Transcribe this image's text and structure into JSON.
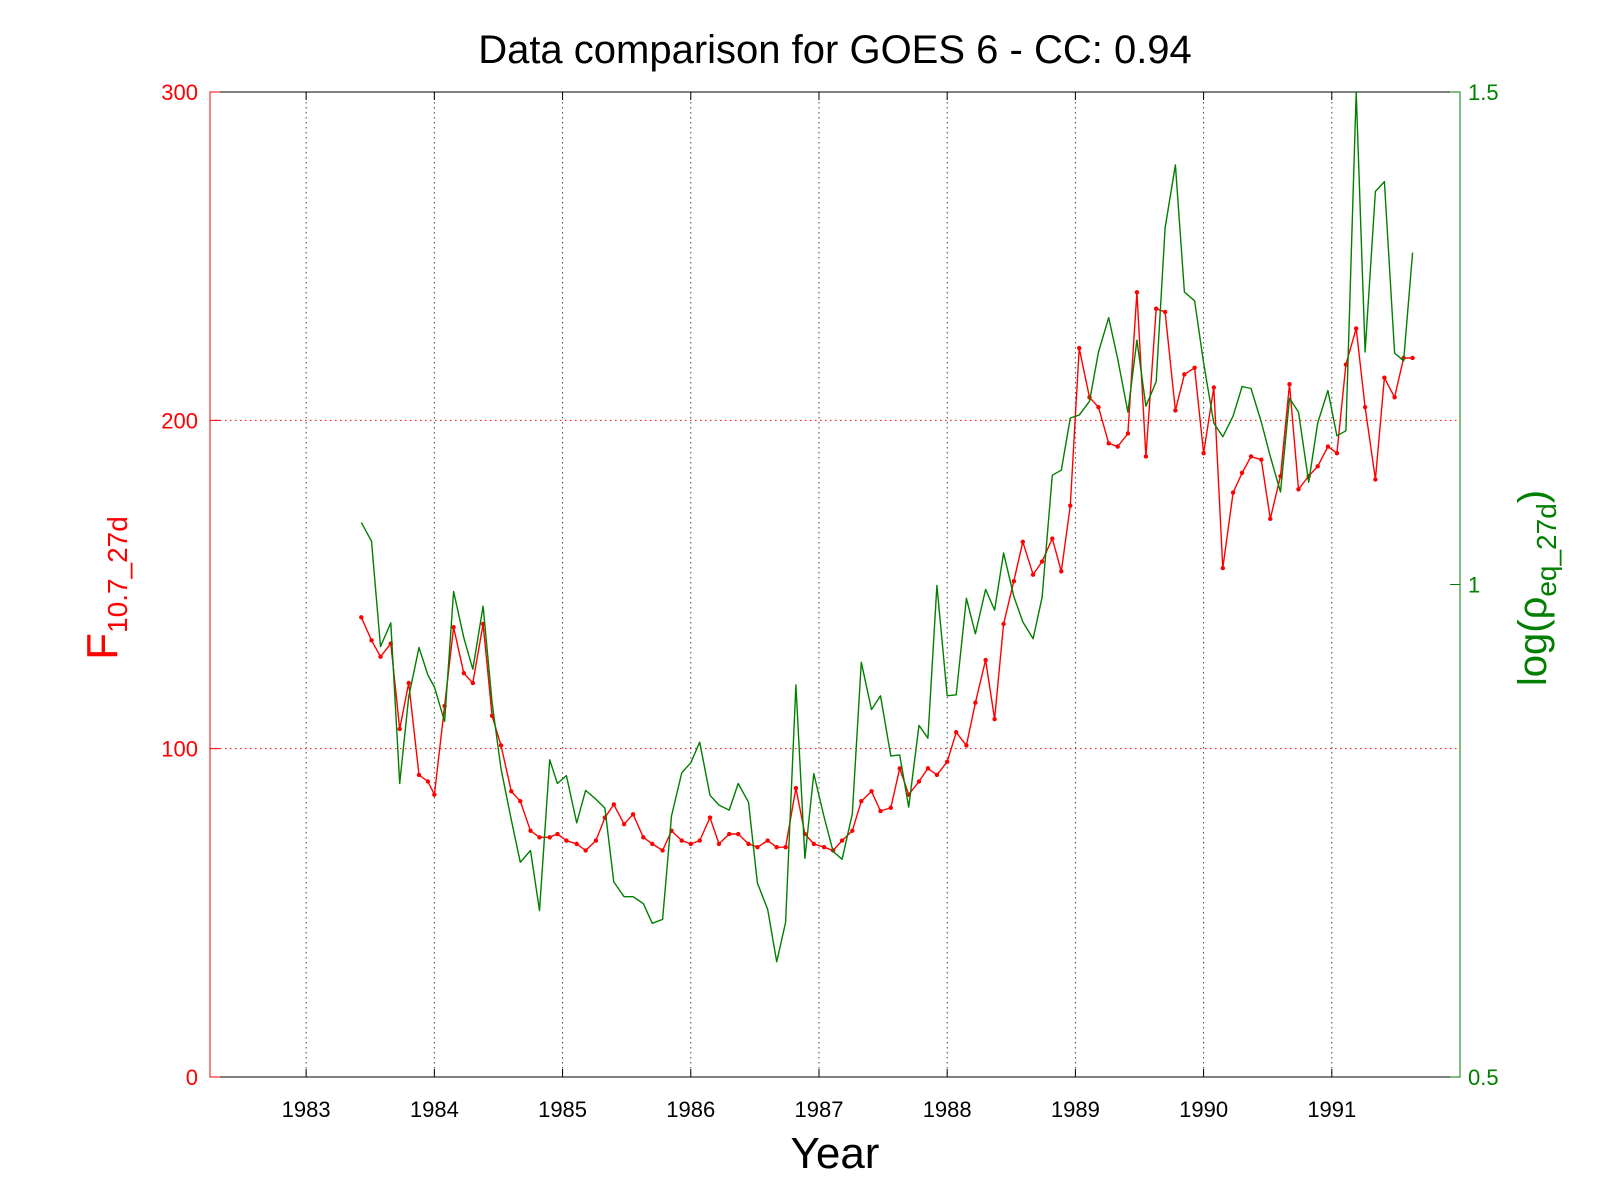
{
  "chart_data": {
    "type": "line",
    "title": "Data comparison for GOES 6 - CC: 0.94",
    "xlabel": "Year",
    "ylabel_left": {
      "main": "F",
      "sub": "10.7_27d"
    },
    "ylabel_right": {
      "main": "log(ρ",
      "sub": "eq_27d",
      "tail": ")"
    },
    "xlim": [
      1982.25,
      1992.0
    ],
    "ylim_left": [
      0,
      300
    ],
    "ylim_right": [
      0.5,
      1.5
    ],
    "x_ticks": [
      1983,
      1984,
      1985,
      1986,
      1987,
      1988,
      1989,
      1990,
      1991
    ],
    "x_tick_labels": [
      "1983",
      "1984",
      "1985",
      "1986",
      "1987",
      "1988",
      "1989",
      "1990",
      "1991"
    ],
    "left_ticks": [
      0,
      100,
      200,
      300
    ],
    "left_tick_labels": [
      "0",
      "100",
      "200",
      "300"
    ],
    "right_ticks": [
      0.5,
      1,
      1.5
    ],
    "right_tick_labels": [
      "0.5",
      "1",
      "1.5"
    ],
    "grid": {
      "vertical": true,
      "horizontal": true
    },
    "colors": {
      "left_series": "#ff0000",
      "right_series": "#007f00",
      "axis": "#000000"
    },
    "series": [
      {
        "axis": "left",
        "marker": "dot",
        "values": [
          [
            1983.43,
            140
          ],
          [
            1983.51,
            133
          ],
          [
            1983.58,
            128
          ],
          [
            1983.66,
            132
          ],
          [
            1983.73,
            106
          ],
          [
            1983.8,
            120
          ],
          [
            1983.88,
            92
          ],
          [
            1983.95,
            90
          ],
          [
            1984.0,
            86
          ],
          [
            1984.08,
            113
          ],
          [
            1984.15,
            137
          ],
          [
            1984.23,
            123
          ],
          [
            1984.3,
            120
          ],
          [
            1984.38,
            138
          ],
          [
            1984.45,
            110
          ],
          [
            1984.52,
            101
          ],
          [
            1984.6,
            87
          ],
          [
            1984.67,
            84
          ],
          [
            1984.75,
            75
          ],
          [
            1984.82,
            73
          ],
          [
            1984.9,
            73
          ],
          [
            1984.96,
            74
          ],
          [
            1985.03,
            72
          ],
          [
            1985.11,
            71
          ],
          [
            1985.18,
            69
          ],
          [
            1985.26,
            72
          ],
          [
            1985.33,
            79
          ],
          [
            1985.4,
            83
          ],
          [
            1985.48,
            77
          ],
          [
            1985.55,
            80
          ],
          [
            1985.63,
            73
          ],
          [
            1985.7,
            71
          ],
          [
            1985.78,
            69
          ],
          [
            1985.85,
            75
          ],
          [
            1985.93,
            72
          ],
          [
            1986.0,
            71
          ],
          [
            1986.07,
            72
          ],
          [
            1986.15,
            79
          ],
          [
            1986.22,
            71
          ],
          [
            1986.3,
            74
          ],
          [
            1986.37,
            74
          ],
          [
            1986.45,
            71
          ],
          [
            1986.52,
            70
          ],
          [
            1986.6,
            72
          ],
          [
            1986.67,
            70
          ],
          [
            1986.74,
            70
          ],
          [
            1986.82,
            88
          ],
          [
            1986.89,
            74
          ],
          [
            1986.96,
            71
          ],
          [
            1987.04,
            70
          ],
          [
            1987.11,
            69
          ],
          [
            1987.18,
            72
          ],
          [
            1987.26,
            75
          ],
          [
            1987.33,
            84
          ],
          [
            1987.41,
            87
          ],
          [
            1987.48,
            81
          ],
          [
            1987.56,
            82
          ],
          [
            1987.63,
            94
          ],
          [
            1987.7,
            86
          ],
          [
            1987.78,
            90
          ],
          [
            1987.85,
            94
          ],
          [
            1987.92,
            92
          ],
          [
            1988.0,
            96
          ],
          [
            1988.07,
            105
          ],
          [
            1988.15,
            101
          ],
          [
            1988.22,
            114
          ],
          [
            1988.3,
            127
          ],
          [
            1988.37,
            109
          ],
          [
            1988.44,
            138
          ],
          [
            1988.52,
            151
          ],
          [
            1988.59,
            163
          ],
          [
            1988.67,
            153
          ],
          [
            1988.74,
            157
          ],
          [
            1988.82,
            164
          ],
          [
            1988.89,
            154
          ],
          [
            1988.96,
            174
          ],
          [
            1989.03,
            222
          ],
          [
            1989.11,
            207
          ],
          [
            1989.18,
            204
          ],
          [
            1989.26,
            193
          ],
          [
            1989.33,
            192
          ],
          [
            1989.41,
            196
          ],
          [
            1989.48,
            239
          ],
          [
            1989.55,
            189
          ],
          [
            1989.63,
            234
          ],
          [
            1989.7,
            233
          ],
          [
            1989.78,
            203
          ],
          [
            1989.85,
            214
          ],
          [
            1989.93,
            216
          ],
          [
            1990.0,
            190
          ],
          [
            1990.08,
            210
          ],
          [
            1990.15,
            155
          ],
          [
            1990.23,
            178
          ],
          [
            1990.3,
            184
          ],
          [
            1990.37,
            189
          ],
          [
            1990.45,
            188
          ],
          [
            1990.52,
            170
          ],
          [
            1990.6,
            183
          ],
          [
            1990.67,
            211
          ],
          [
            1990.74,
            179
          ],
          [
            1990.82,
            183
          ],
          [
            1990.89,
            186
          ],
          [
            1990.97,
            192
          ],
          [
            1991.04,
            190
          ],
          [
            1991.11,
            217
          ],
          [
            1991.19,
            228
          ],
          [
            1991.26,
            204
          ],
          [
            1991.34,
            182
          ],
          [
            1991.41,
            213
          ],
          [
            1991.49,
            207
          ],
          [
            1991.56,
            219
          ],
          [
            1991.63,
            219
          ]
        ]
      },
      {
        "axis": "right",
        "marker": "none",
        "values": [
          [
            1983.43,
            1.063
          ],
          [
            1983.51,
            1.044
          ],
          [
            1983.58,
            0.937
          ],
          [
            1983.66,
            0.961
          ],
          [
            1983.73,
            0.798
          ],
          [
            1983.8,
            0.886
          ],
          [
            1983.88,
            0.936
          ],
          [
            1983.95,
            0.908
          ],
          [
            1984.0,
            0.896
          ],
          [
            1984.08,
            0.861
          ],
          [
            1984.15,
            0.993
          ],
          [
            1984.23,
            0.946
          ],
          [
            1984.3,
            0.914
          ],
          [
            1984.38,
            0.978
          ],
          [
            1984.45,
            0.88
          ],
          [
            1984.52,
            0.813
          ],
          [
            1984.6,
            0.761
          ],
          [
            1984.67,
            0.718
          ],
          [
            1984.75,
            0.73
          ],
          [
            1984.82,
            0.669
          ],
          [
            1984.9,
            0.822
          ],
          [
            1984.96,
            0.798
          ],
          [
            1985.03,
            0.806
          ],
          [
            1985.11,
            0.758
          ],
          [
            1985.18,
            0.791
          ],
          [
            1985.26,
            0.782
          ],
          [
            1985.33,
            0.773
          ],
          [
            1985.4,
            0.698
          ],
          [
            1985.48,
            0.683
          ],
          [
            1985.55,
            0.683
          ],
          [
            1985.63,
            0.676
          ],
          [
            1985.7,
            0.656
          ],
          [
            1985.78,
            0.66
          ],
          [
            1985.85,
            0.765
          ],
          [
            1985.93,
            0.809
          ],
          [
            1986.0,
            0.819
          ],
          [
            1986.07,
            0.84
          ],
          [
            1986.15,
            0.786
          ],
          [
            1986.22,
            0.776
          ],
          [
            1986.3,
            0.771
          ],
          [
            1986.37,
            0.798
          ],
          [
            1986.45,
            0.779
          ],
          [
            1986.52,
            0.697
          ],
          [
            1986.6,
            0.67
          ],
          [
            1986.67,
            0.617
          ],
          [
            1986.74,
            0.657
          ],
          [
            1986.82,
            0.898
          ],
          [
            1986.89,
            0.722
          ],
          [
            1986.96,
            0.808
          ],
          [
            1987.04,
            0.764
          ],
          [
            1987.11,
            0.729
          ],
          [
            1987.18,
            0.721
          ],
          [
            1987.26,
            0.767
          ],
          [
            1987.33,
            0.921
          ],
          [
            1987.41,
            0.873
          ],
          [
            1987.48,
            0.887
          ],
          [
            1987.56,
            0.826
          ],
          [
            1987.63,
            0.827
          ],
          [
            1987.7,
            0.774
          ],
          [
            1987.78,
            0.857
          ],
          [
            1987.85,
            0.844
          ],
          [
            1987.92,
            0.999
          ],
          [
            1988.0,
            0.887
          ],
          [
            1988.07,
            0.888
          ],
          [
            1988.15,
            0.986
          ],
          [
            1988.22,
            0.95
          ],
          [
            1988.3,
            0.995
          ],
          [
            1988.37,
            0.974
          ],
          [
            1988.44,
            1.032
          ],
          [
            1988.52,
            0.988
          ],
          [
            1988.59,
            0.962
          ],
          [
            1988.67,
            0.945
          ],
          [
            1988.74,
            0.987
          ],
          [
            1988.82,
            1.111
          ],
          [
            1988.89,
            1.116
          ],
          [
            1988.96,
            1.169
          ],
          [
            1989.03,
            1.172
          ],
          [
            1989.11,
            1.186
          ],
          [
            1989.18,
            1.236
          ],
          [
            1989.26,
            1.271
          ],
          [
            1989.33,
            1.229
          ],
          [
            1989.41,
            1.175
          ],
          [
            1989.48,
            1.248
          ],
          [
            1989.55,
            1.181
          ],
          [
            1989.63,
            1.206
          ],
          [
            1989.7,
            1.362
          ],
          [
            1989.78,
            1.426
          ],
          [
            1989.85,
            1.297
          ],
          [
            1989.93,
            1.288
          ],
          [
            1990.0,
            1.225
          ],
          [
            1990.08,
            1.164
          ],
          [
            1990.15,
            1.15
          ],
          [
            1990.23,
            1.171
          ],
          [
            1990.3,
            1.201
          ],
          [
            1990.37,
            1.199
          ],
          [
            1990.45,
            1.165
          ],
          [
            1990.52,
            1.13
          ],
          [
            1990.6,
            1.094
          ],
          [
            1990.67,
            1.189
          ],
          [
            1990.74,
            1.175
          ],
          [
            1990.82,
            1.104
          ],
          [
            1990.89,
            1.164
          ],
          [
            1990.97,
            1.197
          ],
          [
            1991.04,
            1.151
          ],
          [
            1991.11,
            1.156
          ],
          [
            1991.19,
            1.5
          ],
          [
            1991.26,
            1.236
          ],
          [
            1991.34,
            1.399
          ],
          [
            1991.41,
            1.409
          ],
          [
            1991.49,
            1.235
          ],
          [
            1991.56,
            1.227
          ],
          [
            1991.63,
            1.337
          ]
        ]
      }
    ]
  }
}
